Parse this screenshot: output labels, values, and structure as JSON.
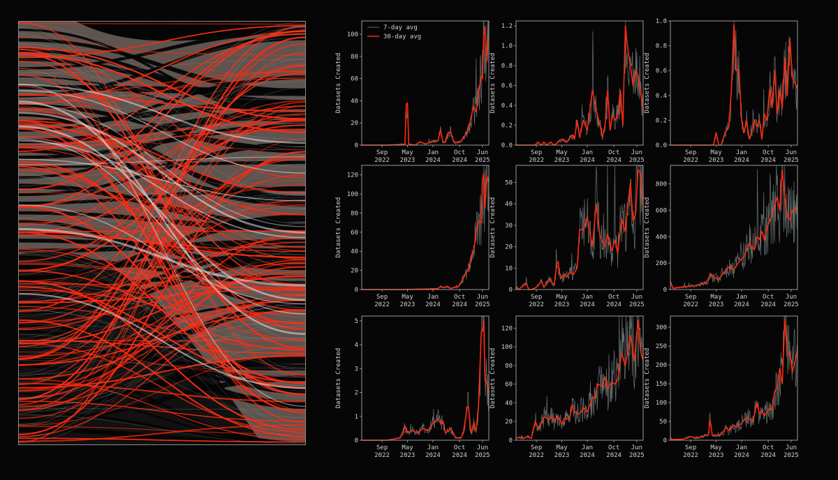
{
  "figure": {
    "background": "#060606",
    "accent_red": "#ff2a10",
    "gray_line": "#7d8a88",
    "left_panel": {
      "type": "flow-diagram",
      "description": "Bump/ribbon flow visualization with gray bands and red/white crossing strands"
    }
  },
  "legend": {
    "items": [
      {
        "label": "7-day avg",
        "color": "#7d8a88"
      },
      {
        "label": "30-day avg",
        "color": "#ff2a10"
      }
    ]
  },
  "chart_data": [
    {
      "type": "line",
      "id": "r1c1",
      "ylabel": "Datasets Created",
      "xlabel": "",
      "ylim": [
        0,
        112
      ],
      "yticks": [
        0,
        20,
        40,
        60,
        80,
        100
      ],
      "xticks": [
        "Sep\n2022",
        "May\n2023",
        "Jan\n2024",
        "Oct\n2024",
        "Jun\n2025"
      ],
      "series": [
        {
          "name": "30-day avg",
          "x": [
            0,
            0.1,
            0.2,
            0.3,
            0.34,
            0.35,
            0.36,
            0.37,
            0.42,
            0.46,
            0.5,
            0.55,
            0.6,
            0.62,
            0.64,
            0.66,
            0.68,
            0.7,
            0.72,
            0.74,
            0.78,
            0.82,
            0.84,
            0.86,
            0.88,
            0.9,
            0.92,
            0.94,
            0.95,
            0.96,
            0.97,
            0.98,
            0.99,
            1.0
          ],
          "y": [
            0,
            0,
            0,
            0.5,
            1,
            37,
            38,
            1,
            0,
            3,
            1,
            3,
            4,
            14,
            2,
            3,
            11,
            12,
            4,
            2,
            3,
            10,
            14,
            25,
            35,
            30,
            48,
            62,
            60,
            98,
            107,
            75,
            95,
            97
          ]
        }
      ]
    },
    {
      "type": "line",
      "id": "r1c2",
      "ylabel": "Datasets Created",
      "xlabel": "",
      "ylim": [
        0,
        1.25
      ],
      "yticks": [
        "0.0",
        "0.2",
        "0.4",
        "0.6",
        "0.8",
        "1.0",
        "1.2"
      ],
      "xticks": [
        "Sep\n2022",
        "May\n2023",
        "Jan\n2024",
        "Oct\n2024",
        "Jun\n2025"
      ],
      "series": [
        {
          "name": "30-day avg",
          "x": [
            0,
            0.15,
            0.17,
            0.2,
            0.22,
            0.24,
            0.27,
            0.3,
            0.33,
            0.36,
            0.4,
            0.44,
            0.46,
            0.48,
            0.5,
            0.53,
            0.56,
            0.6,
            0.64,
            0.66,
            0.68,
            0.7,
            0.72,
            0.74,
            0.76,
            0.78,
            0.8,
            0.82,
            0.84,
            0.86,
            0.88,
            0.9,
            0.92,
            0.94,
            0.96,
            1.0
          ],
          "y": [
            0,
            0,
            0.03,
            0,
            0.03,
            0,
            0.03,
            0,
            0.03,
            0.06,
            0.03,
            0.1,
            0.06,
            0.25,
            0.08,
            0.25,
            0.15,
            0.55,
            0.3,
            0.2,
            0.08,
            0.2,
            0.55,
            0.15,
            0.3,
            0.25,
            0.3,
            0.55,
            0.2,
            1.2,
            0.95,
            0.8,
            0.6,
            0.75,
            0.7,
            0.35
          ]
        }
      ]
    },
    {
      "type": "line",
      "id": "r1c3",
      "ylabel": "Datasets Created",
      "xlabel": "",
      "ylim": [
        0,
        1.0
      ],
      "yticks": [
        "0.0",
        "0.2",
        "0.4",
        "0.6",
        "0.8",
        "1.0"
      ],
      "xticks": [
        "Sep\n2022",
        "May\n2023",
        "Jan\n2024",
        "Oct\n2024",
        "Jun\n2025"
      ],
      "series": [
        {
          "name": "30-day avg",
          "x": [
            0,
            0.34,
            0.36,
            0.38,
            0.4,
            0.43,
            0.46,
            0.48,
            0.5,
            0.52,
            0.54,
            0.56,
            0.58,
            0.6,
            0.62,
            0.64,
            0.66,
            0.68,
            0.7,
            0.72,
            0.74,
            0.76,
            0.78,
            0.8,
            0.82,
            0.84,
            0.86,
            0.88,
            0.9,
            0.92,
            0.94,
            0.96,
            1.0
          ],
          "y": [
            0,
            0,
            0.1,
            0,
            0,
            0.1,
            0.15,
            0.45,
            0.97,
            0.6,
            0.6,
            0.2,
            0.1,
            0.2,
            0.05,
            0.1,
            0.2,
            0.15,
            0.2,
            0.05,
            0.25,
            0.2,
            0.45,
            0.3,
            0.6,
            0.25,
            0.45,
            0.3,
            0.7,
            0.4,
            0.85,
            0.55,
            0.45
          ]
        }
      ]
    },
    {
      "type": "line",
      "id": "r2c1",
      "ylabel": "Datasets Created",
      "xlabel": "",
      "ylim": [
        0,
        130
      ],
      "yticks": [
        0,
        20,
        40,
        60,
        80,
        100,
        120
      ],
      "xticks": [
        "Sep\n2022",
        "May\n2023",
        "Jan\n2024",
        "Oct\n2024",
        "Jun\n2025"
      ],
      "series": [
        {
          "name": "30-day avg",
          "x": [
            0,
            0.3,
            0.5,
            0.6,
            0.62,
            0.64,
            0.68,
            0.7,
            0.72,
            0.76,
            0.8,
            0.82,
            0.84,
            0.86,
            0.88,
            0.9,
            0.92,
            0.94,
            0.95,
            0.96,
            0.97,
            0.98,
            0.99,
            1.0
          ],
          "y": [
            0,
            0,
            0.5,
            1,
            3,
            2,
            3,
            1,
            2,
            3,
            12,
            18,
            20,
            35,
            40,
            60,
            72,
            70,
            115,
            122,
            85,
            110,
            118,
            112
          ]
        }
      ]
    },
    {
      "type": "line",
      "id": "r2c2",
      "ylabel": "Datasets Created",
      "xlabel": "",
      "ylim": [
        0,
        58
      ],
      "yticks": [
        0,
        10,
        20,
        30,
        40,
        50
      ],
      "xticks": [
        "Sep\n2022",
        "May\n2023",
        "Jan\n2024",
        "Oct\n2024",
        "Jun\n2025"
      ],
      "series": [
        {
          "name": "30-day avg",
          "x": [
            0,
            0.02,
            0.08,
            0.1,
            0.12,
            0.16,
            0.2,
            0.22,
            0.26,
            0.3,
            0.32,
            0.33,
            0.35,
            0.38,
            0.4,
            0.42,
            0.45,
            0.48,
            0.5,
            0.53,
            0.56,
            0.6,
            0.63,
            0.66,
            0.7,
            0.72,
            0.75,
            0.78,
            0.8,
            0.83,
            0.86,
            0.88,
            0.9,
            0.92,
            0.94,
            0.96,
            0.98,
            1.0
          ],
          "y": [
            1,
            0,
            3,
            0,
            0,
            1,
            4,
            1,
            5,
            2,
            12,
            13,
            5,
            7,
            6,
            8,
            7,
            10,
            28,
            28,
            34,
            20,
            40,
            25,
            20,
            26,
            18,
            23,
            17,
            33,
            27,
            40,
            50,
            32,
            35,
            56,
            54,
            37
          ]
        }
      ]
    },
    {
      "type": "line",
      "id": "r2c3",
      "ylabel": "Datasets Created",
      "xlabel": "",
      "ylim": [
        0,
        940
      ],
      "yticks": [
        0,
        200,
        400,
        600,
        800
      ],
      "xticks": [
        "Sep\n2022",
        "May\n2023",
        "Jan\n2024",
        "Oct\n2024",
        "Jun\n2025"
      ],
      "series": [
        {
          "name": "30-day avg",
          "x": [
            0,
            0.02,
            0.1,
            0.2,
            0.28,
            0.32,
            0.34,
            0.38,
            0.42,
            0.46,
            0.5,
            0.54,
            0.58,
            0.62,
            0.66,
            0.68,
            0.7,
            0.72,
            0.74,
            0.76,
            0.8,
            0.84,
            0.86,
            0.88,
            0.9,
            0.92,
            0.94,
            0.96,
            0.98,
            1.0
          ],
          "y": [
            60,
            10,
            20,
            30,
            50,
            120,
            90,
            80,
            130,
            170,
            150,
            210,
            250,
            350,
            300,
            400,
            380,
            440,
            370,
            470,
            560,
            700,
            600,
            900,
            700,
            550,
            530,
            600,
            600,
            630
          ]
        }
      ]
    },
    {
      "type": "line",
      "id": "r3c1",
      "ylabel": "Datasets Created",
      "xlabel": "",
      "ylim": [
        0,
        5.2
      ],
      "yticks": [
        0,
        1,
        2,
        3,
        4,
        5
      ],
      "xticks": [
        "Sep\n2022",
        "May\n2023",
        "Jan\n2024",
        "Oct\n2024",
        "Jun\n2025"
      ],
      "series": [
        {
          "name": "30-day avg",
          "x": [
            0,
            0.1,
            0.2,
            0.3,
            0.32,
            0.34,
            0.36,
            0.4,
            0.44,
            0.48,
            0.52,
            0.56,
            0.6,
            0.62,
            0.64,
            0.66,
            0.7,
            0.74,
            0.78,
            0.8,
            0.83,
            0.84,
            0.86,
            0.88,
            0.9,
            0.92,
            0.94,
            0.95,
            0.96,
            0.97,
            0.98,
            1.0
          ],
          "y": [
            0,
            0,
            0,
            0.1,
            0.3,
            0.6,
            0.3,
            0.4,
            0.3,
            0.5,
            0.4,
            0.7,
            0.9,
            0.7,
            0.8,
            0.3,
            0.5,
            0.1,
            0.1,
            0.3,
            1.4,
            1.4,
            0.3,
            0.7,
            0.4,
            1.5,
            4.5,
            4.6,
            5.0,
            2.5,
            2.5,
            2.0
          ]
        }
      ]
    },
    {
      "type": "line",
      "id": "r3c2",
      "ylabel": "Datasets Created",
      "xlabel": "",
      "ylim": [
        0,
        133
      ],
      "yticks": [
        0,
        20,
        40,
        60,
        80,
        100,
        120
      ],
      "xticks": [
        "Sep\n2022",
        "May\n2023",
        "Jan\n2024",
        "Oct\n2024",
        "Jun\n2025"
      ],
      "series": [
        {
          "name": "30-day avg",
          "x": [
            0,
            0.02,
            0.06,
            0.09,
            0.12,
            0.15,
            0.18,
            0.22,
            0.26,
            0.28,
            0.3,
            0.33,
            0.36,
            0.38,
            0.42,
            0.44,
            0.46,
            0.5,
            0.53,
            0.56,
            0.6,
            0.62,
            0.64,
            0.68,
            0.7,
            0.72,
            0.75,
            0.78,
            0.8,
            0.83,
            0.86,
            0.9,
            0.93,
            0.96,
            0.98,
            1.0
          ],
          "y": [
            2,
            3,
            2,
            4,
            2,
            20,
            12,
            25,
            22,
            25,
            20,
            26,
            17,
            24,
            22,
            38,
            30,
            28,
            35,
            30,
            45,
            45,
            60,
            58,
            68,
            55,
            62,
            60,
            65,
            93,
            80,
            112,
            85,
            128,
            95,
            85
          ]
        }
      ]
    },
    {
      "type": "line",
      "id": "r3c3",
      "ylabel": "Datasets Created",
      "xlabel": "",
      "ylim": [
        0,
        330
      ],
      "yticks": [
        0,
        50,
        100,
        150,
        200,
        250,
        300
      ],
      "xticks": [
        "Sep\n2022",
        "May\n2023",
        "Jan\n2024",
        "Oct\n2024",
        "Jun\n2025"
      ],
      "series": [
        {
          "name": "30-day avg",
          "x": [
            0,
            0.01,
            0.1,
            0.16,
            0.2,
            0.3,
            0.31,
            0.33,
            0.4,
            0.44,
            0.46,
            0.5,
            0.52,
            0.55,
            0.6,
            0.65,
            0.68,
            0.7,
            0.72,
            0.74,
            0.78,
            0.8,
            0.82,
            0.84,
            0.86,
            0.88,
            0.9,
            0.92,
            0.94,
            0.96,
            0.98,
            1.0
          ],
          "y": [
            8,
            2,
            3,
            10,
            5,
            15,
            55,
            12,
            15,
            35,
            25,
            40,
            35,
            42,
            60,
            50,
            100,
            70,
            80,
            65,
            85,
            80,
            130,
            140,
            190,
            150,
            320,
            230,
            230,
            180,
            210,
            240
          ]
        }
      ]
    }
  ]
}
